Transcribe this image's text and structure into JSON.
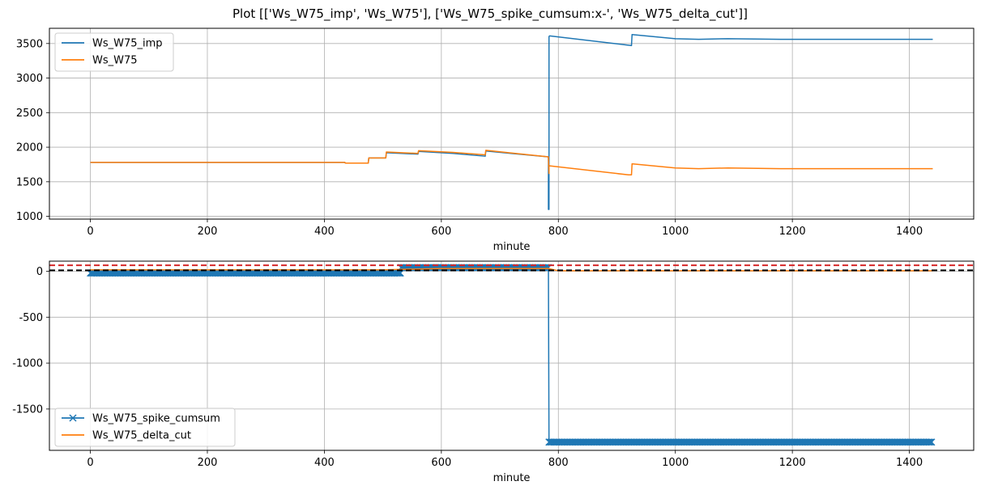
{
  "title": "Plot [['Ws_W75_imp', 'Ws_W75'], ['Ws_W75_spike_cumsum:x-', 'Ws_W75_delta_cut']]",
  "chart_data": [
    {
      "type": "line",
      "xlabel": "minute",
      "ylabel": "",
      "xlim": [
        -70,
        1510
      ],
      "ylim": [
        960,
        3720
      ],
      "xticks": [
        0,
        200,
        400,
        600,
        800,
        1000,
        1200,
        1400
      ],
      "yticks": [
        1000,
        1500,
        2000,
        2500,
        3000,
        3500
      ],
      "xtick_labels": [
        "0",
        "200",
        "400",
        "600",
        "800",
        "1000",
        "1200",
        "1400"
      ],
      "ytick_labels": [
        "1000",
        "1500",
        "2000",
        "2500",
        "3000",
        "3500"
      ],
      "grid": true,
      "legend_position": "top-left",
      "series": [
        {
          "name": "Ws_W75_imp",
          "color": "#1f77b4",
          "marker": "none",
          "x": [
            0,
            435,
            436,
            475,
            476,
            505,
            506,
            560,
            561,
            620,
            675,
            676,
            783,
            783,
            784,
            784,
            785,
            785,
            925,
            926,
            1000,
            1040,
            1090,
            1180,
            1440
          ],
          "y": [
            1780,
            1780,
            1770,
            1770,
            1845,
            1845,
            1920,
            1900,
            1940,
            1910,
            1870,
            1945,
            1860,
            1100,
            1100,
            3600,
            3610,
            3610,
            3470,
            3630,
            3570,
            3560,
            3570,
            3560,
            3560
          ]
        },
        {
          "name": "Ws_W75",
          "color": "#ff7f0e",
          "marker": "none",
          "x": [
            0,
            435,
            436,
            475,
            476,
            505,
            506,
            560,
            561,
            620,
            675,
            676,
            783,
            784,
            784,
            785,
            920,
            925,
            926,
            1000,
            1040,
            1090,
            1180,
            1440
          ],
          "y": [
            1780,
            1780,
            1770,
            1770,
            1845,
            1845,
            1930,
            1910,
            1950,
            1925,
            1890,
            1955,
            1860,
            1620,
            1740,
            1730,
            1600,
            1600,
            1760,
            1700,
            1690,
            1700,
            1690,
            1690
          ]
        }
      ]
    },
    {
      "type": "line",
      "xlabel": "minute",
      "ylabel": "",
      "xlim": [
        -70,
        1510
      ],
      "ylim": [
        -1950,
        110
      ],
      "xticks": [
        0,
        200,
        400,
        600,
        800,
        1000,
        1200,
        1400
      ],
      "yticks": [
        0,
        -500,
        -1000,
        -1500
      ],
      "xtick_labels": [
        "0",
        "200",
        "400",
        "600",
        "800",
        "1000",
        "1200",
        "1400"
      ],
      "ytick_labels": [
        "0",
        "-500",
        "-1000",
        "-1500"
      ],
      "grid": true,
      "legend_position": "bottom-left",
      "hlines": [
        {
          "y": 65,
          "color": "#d62728",
          "style": "dashed"
        },
        {
          "y": 10,
          "color": "#000000",
          "style": "dashed"
        }
      ],
      "series": [
        {
          "name": "Ws_W75_spike_cumsum",
          "color": "#1f77b4",
          "marker": "x",
          "x": [
            0,
            100,
            200,
            300,
            400,
            500,
            530,
            531,
            590,
            591,
            783,
            784,
            785,
            900,
            1000,
            1100,
            1200,
            1300,
            1440
          ],
          "y": [
            -20,
            -20,
            -20,
            -20,
            -20,
            -20,
            -20,
            40,
            40,
            40,
            40,
            -1860,
            -1860,
            -1860,
            -1860,
            -1860,
            -1860,
            -1860,
            -1860
          ]
        },
        {
          "name": "Ws_W75_delta_cut",
          "color": "#ff7f0e",
          "marker": "none",
          "x": [
            0,
            100,
            200,
            300,
            400,
            500,
            600,
            700,
            783,
            800,
            900,
            1000,
            1100,
            1200,
            1300,
            1440
          ],
          "y": [
            15,
            15,
            15,
            15,
            15,
            15,
            30,
            30,
            30,
            5,
            5,
            5,
            5,
            5,
            5,
            5
          ]
        }
      ]
    }
  ]
}
